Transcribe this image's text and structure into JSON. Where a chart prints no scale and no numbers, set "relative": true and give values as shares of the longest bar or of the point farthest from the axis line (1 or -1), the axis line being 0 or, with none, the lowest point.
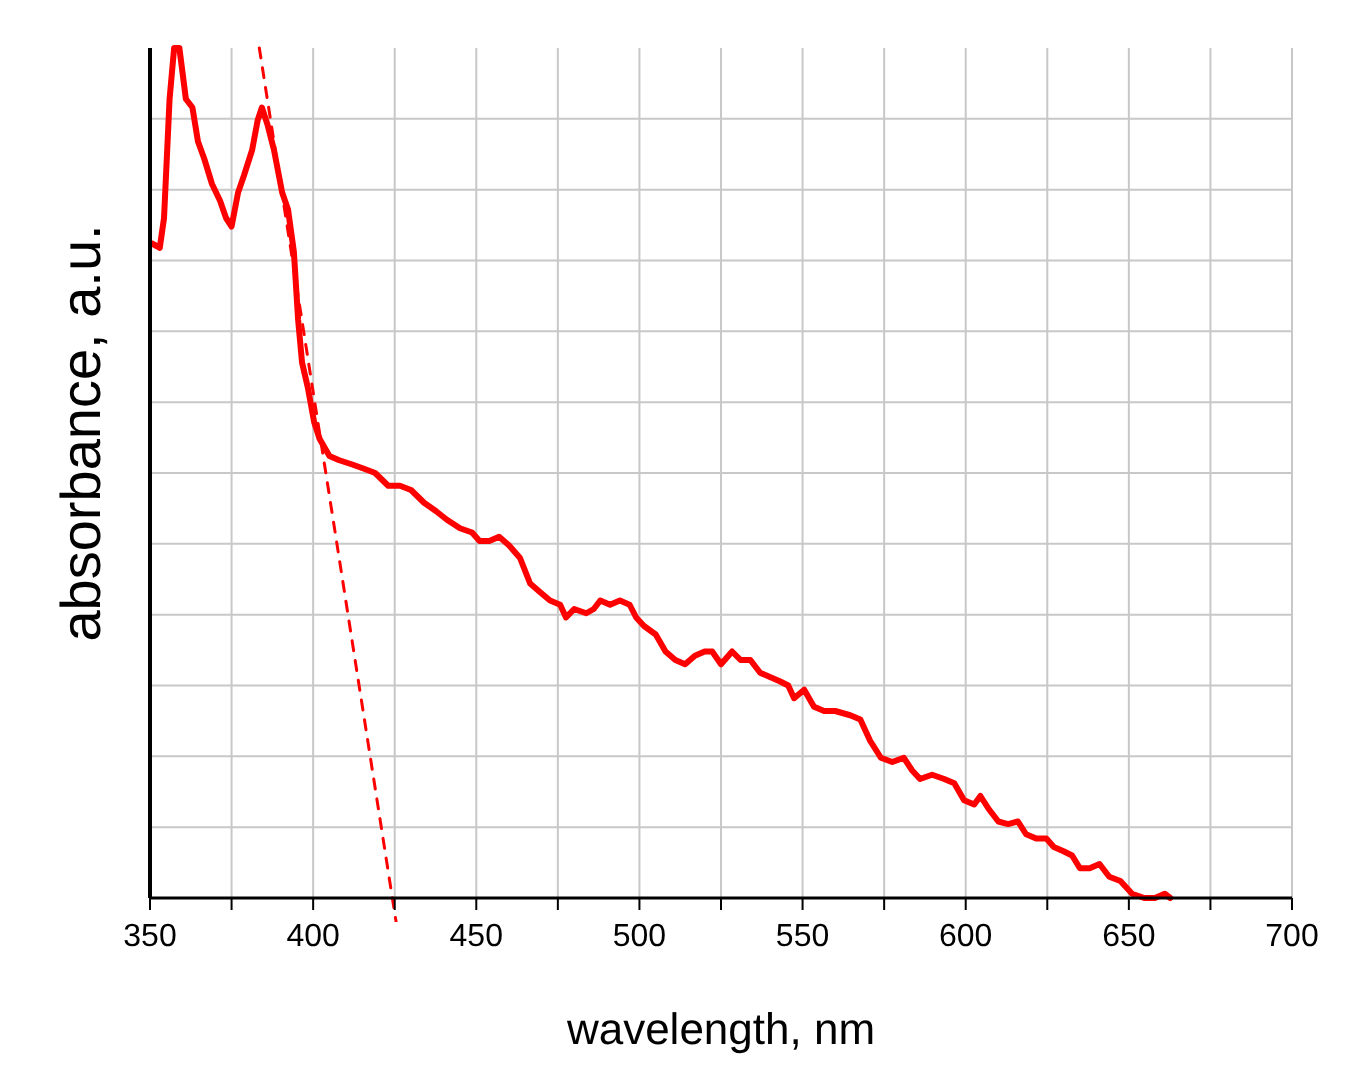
{
  "chart_data": {
    "type": "line",
    "xlabel": "wavelength, nm",
    "ylabel": "absorbance, a.u.",
    "relative": true,
    "grid": true,
    "xlim": [
      350,
      700
    ],
    "xticks": [
      350,
      {
        "value": 375,
        "label": null
      },
      400,
      {
        "value": 425,
        "label": null
      },
      450,
      {
        "value": 475,
        "label": null
      },
      500,
      {
        "value": 525,
        "label": null
      },
      550,
      {
        "value": 575,
        "label": null
      },
      600,
      {
        "value": 625,
        "label": null
      },
      650,
      {
        "value": 675,
        "label": null
      },
      700
    ],
    "series": [
      {
        "color": "#ff0000",
        "line_style": "solid",
        "x": [
          350.6,
          353,
          354.3,
          356,
          357.4,
          359,
          361,
          363,
          364.7,
          366.6,
          369,
          371.5,
          373.3,
          375,
          377,
          378.8,
          381.3,
          383,
          384.3,
          386,
          388,
          390.5,
          392.3,
          394.1,
          395.4,
          396.6,
          398.4,
          400.3,
          402,
          405,
          408,
          412,
          415.6,
          419,
          423,
          426.6,
          430,
          434,
          437.7,
          441,
          445,
          448.7,
          451,
          454,
          457,
          460,
          463.4,
          466.5,
          469.5,
          472.6,
          475.7,
          477.5,
          480,
          483.7,
          486,
          488,
          491,
          494,
          497,
          499,
          501.4,
          505,
          508,
          511,
          514,
          517,
          520,
          522.3,
          525,
          528.4,
          531,
          534,
          537,
          540,
          543,
          545.6,
          547.4,
          550.5,
          553.5,
          556.6,
          560,
          564.6,
          567.7,
          570.7,
          574,
          577.5,
          581,
          583.6,
          586,
          589.7,
          593.4,
          596.5,
          599.5,
          602.6,
          604.5,
          607,
          610,
          613,
          616,
          618.5,
          621.6,
          624.7,
          627,
          630,
          632.6,
          635,
          638,
          641,
          644,
          647.4,
          651,
          654.7,
          658,
          661,
          662.7
        ],
        "values": [
          0.77,
          0.765,
          0.8,
          0.94,
          1.0,
          1.0,
          0.94,
          0.93,
          0.89,
          0.87,
          0.84,
          0.82,
          0.8,
          0.79,
          0.83,
          0.85,
          0.88,
          0.915,
          0.93,
          0.91,
          0.88,
          0.83,
          0.81,
          0.76,
          0.68,
          0.63,
          0.6,
          0.56,
          0.54,
          0.52,
          0.515,
          0.51,
          0.505,
          0.5,
          0.485,
          0.485,
          0.48,
          0.465,
          0.455,
          0.445,
          0.435,
          0.43,
          0.42,
          0.42,
          0.425,
          0.415,
          0.4,
          0.37,
          0.36,
          0.35,
          0.345,
          0.33,
          0.34,
          0.335,
          0.34,
          0.35,
          0.345,
          0.35,
          0.345,
          0.33,
          0.32,
          0.31,
          0.29,
          0.28,
          0.275,
          0.285,
          0.29,
          0.29,
          0.275,
          0.29,
          0.28,
          0.28,
          0.265,
          0.26,
          0.255,
          0.25,
          0.235,
          0.245,
          0.225,
          0.22,
          0.22,
          0.215,
          0.21,
          0.185,
          0.165,
          0.16,
          0.165,
          0.15,
          0.14,
          0.145,
          0.14,
          0.135,
          0.115,
          0.11,
          0.12,
          0.105,
          0.09,
          0.087,
          0.09,
          0.075,
          0.07,
          0.07,
          0.06,
          0.055,
          0.05,
          0.035,
          0.035,
          0.04,
          0.025,
          0.02,
          0.005,
          0,
          0,
          0.005,
          0
        ]
      },
      {
        "type": "line",
        "color": "#ff0000",
        "line_style": "dashed",
        "x": [
          383.5,
          425.5
        ],
        "values": [
          1.0,
          -0.03
        ]
      }
    ]
  }
}
